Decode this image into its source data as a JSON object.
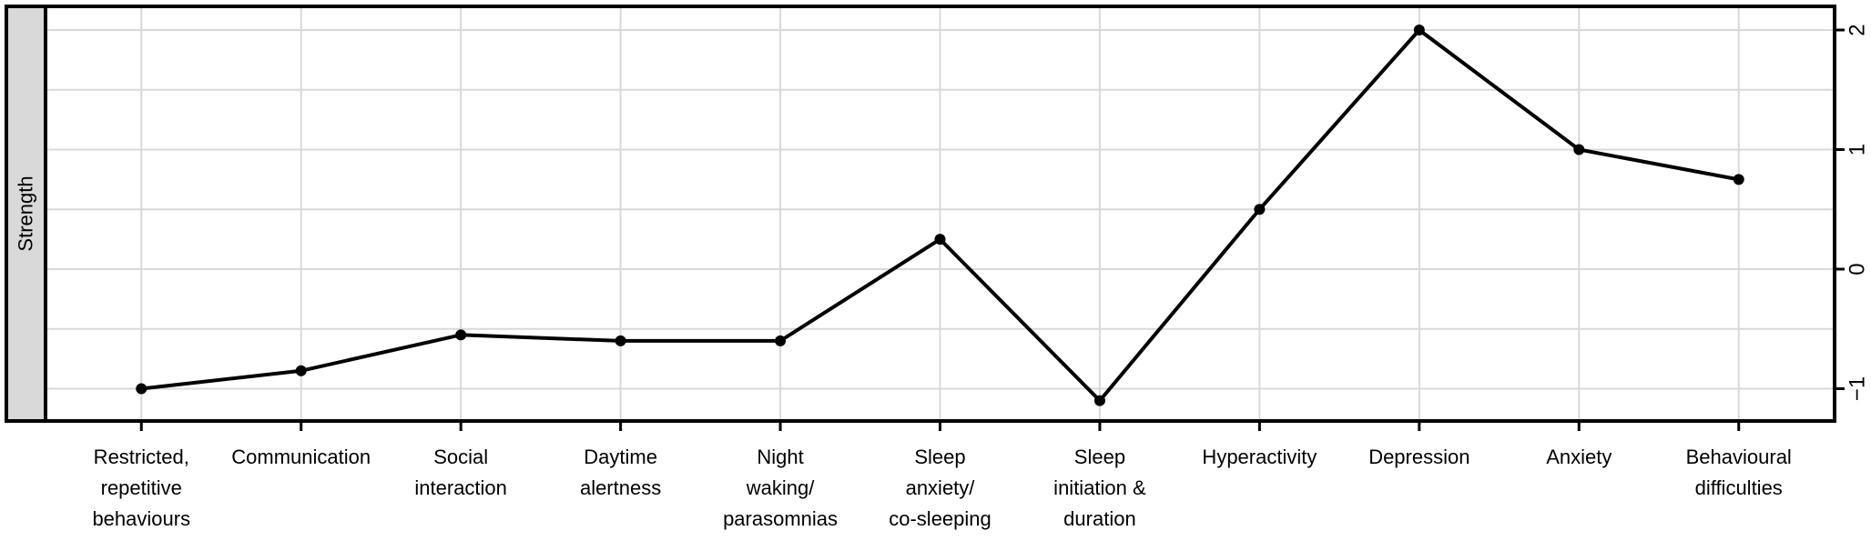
{
  "chart_data": {
    "type": "line",
    "title": "",
    "xlabel": "",
    "ylabel": "Strength",
    "legend": null,
    "grid": true,
    "series_name": "Strength",
    "categories": [
      {
        "label": "Restricted, repetitive behaviours",
        "lines": [
          "Restricted,",
          "repetitive",
          "behaviours"
        ]
      },
      {
        "label": "Communication",
        "lines": [
          "Communication"
        ]
      },
      {
        "label": "Social interaction",
        "lines": [
          "Social",
          "interaction"
        ]
      },
      {
        "label": "Daytime alertness",
        "lines": [
          "Daytime",
          "alertness"
        ]
      },
      {
        "label": "Night waking/parasomnias",
        "lines": [
          "Night",
          "waking/",
          "parasomnias"
        ]
      },
      {
        "label": "Sleep anxiety/co-sleeping",
        "lines": [
          "Sleep",
          "anxiety/",
          "co-sleeping"
        ]
      },
      {
        "label": "Sleep initiation & duration",
        "lines": [
          "Sleep",
          "initiation &",
          "duration"
        ]
      },
      {
        "label": "Hyperactivity",
        "lines": [
          "Hyperactivity"
        ]
      },
      {
        "label": "Depression",
        "lines": [
          "Depression"
        ]
      },
      {
        "label": "Anxiety",
        "lines": [
          "Anxiety"
        ]
      },
      {
        "label": "Behavioural difficulties",
        "lines": [
          "Behavioural",
          "difficulties"
        ]
      }
    ],
    "values": [
      -1.0,
      -0.85,
      -0.55,
      -0.6,
      -0.6,
      0.25,
      -1.1,
      0.5,
      2.0,
      1.0,
      0.75
    ],
    "y_ticks": [
      {
        "value": 2,
        "label": "2"
      },
      {
        "value": 1,
        "label": "1"
      },
      {
        "value": 0,
        "label": "0"
      },
      {
        "value": -1,
        "label": "−1"
      }
    ],
    "y_minor_step": 0.5,
    "ylim": [
      -1.27,
      2.2
    ],
    "axis_side": "right",
    "colors": {
      "line": "#000000",
      "point": "#000000",
      "gridline": "#d9d9d9",
      "strip_background": "#d9d9d9",
      "border": "#000000",
      "background": "#ffffff"
    }
  }
}
